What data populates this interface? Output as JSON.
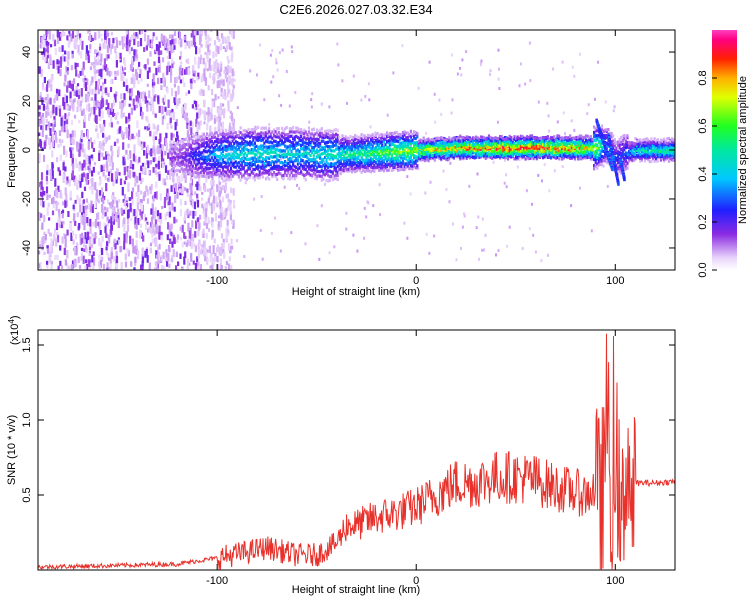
{
  "title": "C2E6.2026.027.03.32.E34",
  "colors": {
    "series": "#e8312a",
    "spectrum_low": "#8a2be2",
    "spectrum_mid": "#00e0a0",
    "spectrum_high": "#e01010"
  },
  "chart_data": [
    {
      "type": "heatmap",
      "title": "C2E6.2026.027.03.32.E34",
      "xlabel": "Height of straight line (km)",
      "ylabel": "Frequency (Hz)",
      "xlim": [
        -190,
        130
      ],
      "ylim": [
        -49,
        49
      ],
      "x_ticks": [
        -100,
        0,
        100
      ],
      "x_tick_labels": [
        "-100",
        "0",
        "100"
      ],
      "y_ticks": [
        -40,
        -20,
        0,
        20,
        40
      ],
      "y_tick_labels": [
        "-40",
        "-20",
        "0",
        "20",
        "40"
      ],
      "colorbar": {
        "label": "Normalized spectral amplitude",
        "range": [
          0,
          1
        ],
        "ticks": [
          0.0,
          0.2,
          0.4,
          0.6,
          0.8
        ],
        "tick_labels": [
          "0.0",
          "0.2",
          "0.4",
          "0.6",
          "0.8"
        ]
      },
      "ridge": {
        "x": [
          -120,
          -100,
          -80,
          -60,
          -40,
          -20,
          0,
          20,
          40,
          60,
          80,
          90,
          95,
          100,
          105,
          110,
          130
        ],
        "frequency": [
          -3,
          -2,
          -1.5,
          -1.5,
          -2,
          -1,
          0,
          1,
          1,
          1,
          1,
          1,
          2,
          -3,
          -1,
          0,
          0
        ],
        "amplitude": [
          0.15,
          0.4,
          0.5,
          0.45,
          0.5,
          0.6,
          0.75,
          0.85,
          0.95,
          0.95,
          0.9,
          0.7,
          0.35,
          0.25,
          0.3,
          0.5,
          0.55
        ]
      },
      "noise_region": {
        "x_from": -190,
        "x_to": -100,
        "amplitude": 0.12
      }
    },
    {
      "type": "line",
      "xlabel": "Height of straight line (km)",
      "ylabel": "SNR (10 * v/v)",
      "y_multiplier_label": "(x10",
      "y_multiplier_exp": "4",
      "y_multiplier_close": ")",
      "xlim": [
        -190,
        130
      ],
      "ylim": [
        0,
        1.6
      ],
      "x_ticks": [
        -100,
        0,
        100
      ],
      "x_tick_labels": [
        "-100",
        "0",
        "100"
      ],
      "y_ticks": [
        0.5,
        1.0,
        1.5
      ],
      "y_tick_labels": [
        "0.5",
        "1.0",
        "1.5"
      ],
      "series": [
        {
          "name": "SNR",
          "x": [
            -190,
            -150,
            -120,
            -100,
            -85,
            -75,
            -60,
            -50,
            -40,
            -35,
            -30,
            -20,
            -10,
            0,
            10,
            20,
            30,
            40,
            50,
            60,
            70,
            80,
            85,
            90,
            93,
            96,
            98,
            100,
            103,
            106,
            108,
            110,
            120,
            130
          ],
          "values": [
            0.02,
            0.03,
            0.04,
            0.08,
            0.12,
            0.15,
            0.1,
            0.1,
            0.18,
            0.3,
            0.3,
            0.35,
            0.38,
            0.42,
            0.5,
            0.58,
            0.58,
            0.62,
            0.62,
            0.6,
            0.55,
            0.52,
            0.5,
            0.55,
            0.4,
            1.1,
            0.3,
            0.95,
            0.15,
            0.9,
            0.35,
            0.58,
            0.58,
            0.59
          ]
        }
      ]
    }
  ]
}
